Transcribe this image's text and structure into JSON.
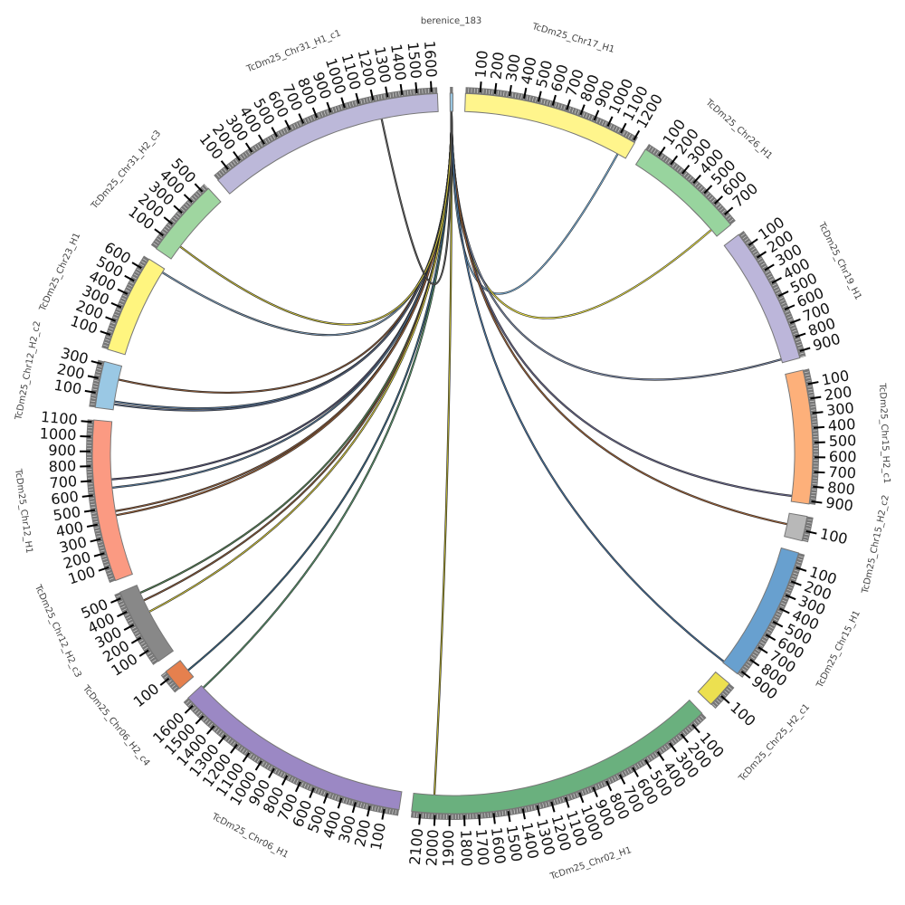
{
  "diagram": {
    "type": "circos",
    "tick_interval": 100,
    "query": "berenice_183",
    "chromosomes": [
      {
        "name": "berenice_183",
        "length": 20,
        "color": "#9ac8e4"
      },
      {
        "name": "TcDm25_Chr17_H1",
        "length": 1215,
        "color": "#fff58c"
      },
      {
        "name": "TcDm25_Chr26_H1",
        "length": 780,
        "color": "#98d49e"
      },
      {
        "name": "TcDm25_Chr19_H1",
        "length": 945,
        "color": "#bcb6da"
      },
      {
        "name": "TcDm25_Chr15_H2_c1",
        "length": 920,
        "color": "#fdb07a"
      },
      {
        "name": "TcDm25_Chr15_H2_c2",
        "length": 170,
        "color": "#b8b8b8"
      },
      {
        "name": "TcDm25_Chr15_H1",
        "length": 930,
        "color": "#68a0cf"
      },
      {
        "name": "TcDm25_Chr25_H2_c1",
        "length": 190,
        "color": "#ece050"
      },
      {
        "name": "TcDm25_Chr02_H1",
        "length": 2160,
        "color": "#6ab07e"
      },
      {
        "name": "TcDm25_Chr06_H1",
        "length": 1660,
        "color": "#9b88c4"
      },
      {
        "name": "TcDm25_Chr06_H2_c4",
        "length": 150,
        "color": "#e5804e"
      },
      {
        "name": "TcDm25_Chr12_H2_c3",
        "length": 540,
        "color": "#888888"
      },
      {
        "name": "TcDm25_Chr12_H1",
        "length": 1115,
        "color": "#fb9a82"
      },
      {
        "name": "TcDm25_Chr12_H2_c2",
        "length": 320,
        "color": "#9ac8e4"
      },
      {
        "name": "TcDm25_Chr23_H1",
        "length": 680,
        "color": "#fff57f"
      },
      {
        "name": "TcDm25_Chr31_H2_c3",
        "length": 545,
        "color": "#9fd6a0"
      },
      {
        "name": "TcDm25_Chr31_H1_c1",
        "length": 1640,
        "color": "#bcb8d9"
      }
    ],
    "links": [
      {
        "target": "TcDm25_Chr17_H1",
        "pos": 1150,
        "color": "#7fb6e0"
      },
      {
        "target": "TcDm25_Chr26_H1",
        "pos": 720,
        "color": "#f2e84a"
      },
      {
        "target": "TcDm25_Chr19_H1",
        "pos": 920,
        "color": "#7f8fb0"
      },
      {
        "target": "TcDm25_Chr15_H2_c1",
        "pos": 880,
        "color": "#6a6a90"
      },
      {
        "target": "TcDm25_Chr15_H2_c2",
        "pos": 80,
        "color": "#a0643a"
      },
      {
        "target": "TcDm25_Chr15_H1",
        "pos": 920,
        "color": "#4a78a8"
      },
      {
        "target": "TcDm25_Chr02_H1",
        "pos": 2010,
        "color": "#b8b030"
      },
      {
        "target": "TcDm25_Chr06_H1",
        "pos": 1640,
        "color": "#5a9a70"
      },
      {
        "target": "TcDm25_Chr06_H2_c4",
        "pos": 60,
        "color": "#3a6a8a"
      },
      {
        "target": "TcDm25_Chr12_H2_c3",
        "pos": 480,
        "color": "#5a8a5a"
      },
      {
        "target": "TcDm25_Chr12_H2_c3",
        "pos": 420,
        "color": "#8a5a3a"
      },
      {
        "target": "TcDm25_Chr12_H2_c3",
        "pos": 330,
        "color": "#d8cc40"
      },
      {
        "target": "TcDm25_Chr12_H1",
        "pos": 700,
        "color": "#555577"
      },
      {
        "target": "TcDm25_Chr12_H1",
        "pos": 640,
        "color": "#557799"
      },
      {
        "target": "TcDm25_Chr12_H1",
        "pos": 470,
        "color": "#8a5a3a"
      },
      {
        "target": "TcDm25_Chr12_H1",
        "pos": 440,
        "color": "#a0643a"
      },
      {
        "target": "TcDm25_Chr12_H2_c2",
        "pos": 220,
        "color": "#8a5a3a"
      },
      {
        "target": "TcDm25_Chr12_H2_c2",
        "pos": 60,
        "color": "#5a7aa0"
      },
      {
        "target": "TcDm25_Chr12_H2_c2",
        "pos": 40,
        "color": "#5a6a8a"
      },
      {
        "target": "TcDm25_Chr23_H1",
        "pos": 650,
        "color": "#7fa0c0"
      },
      {
        "target": "TcDm25_Chr31_H2_c3",
        "pos": 110,
        "color": "#d8cc40"
      },
      {
        "target": "TcDm25_Chr31_H1_c1",
        "pos": 1230,
        "color": "#666666"
      }
    ]
  }
}
